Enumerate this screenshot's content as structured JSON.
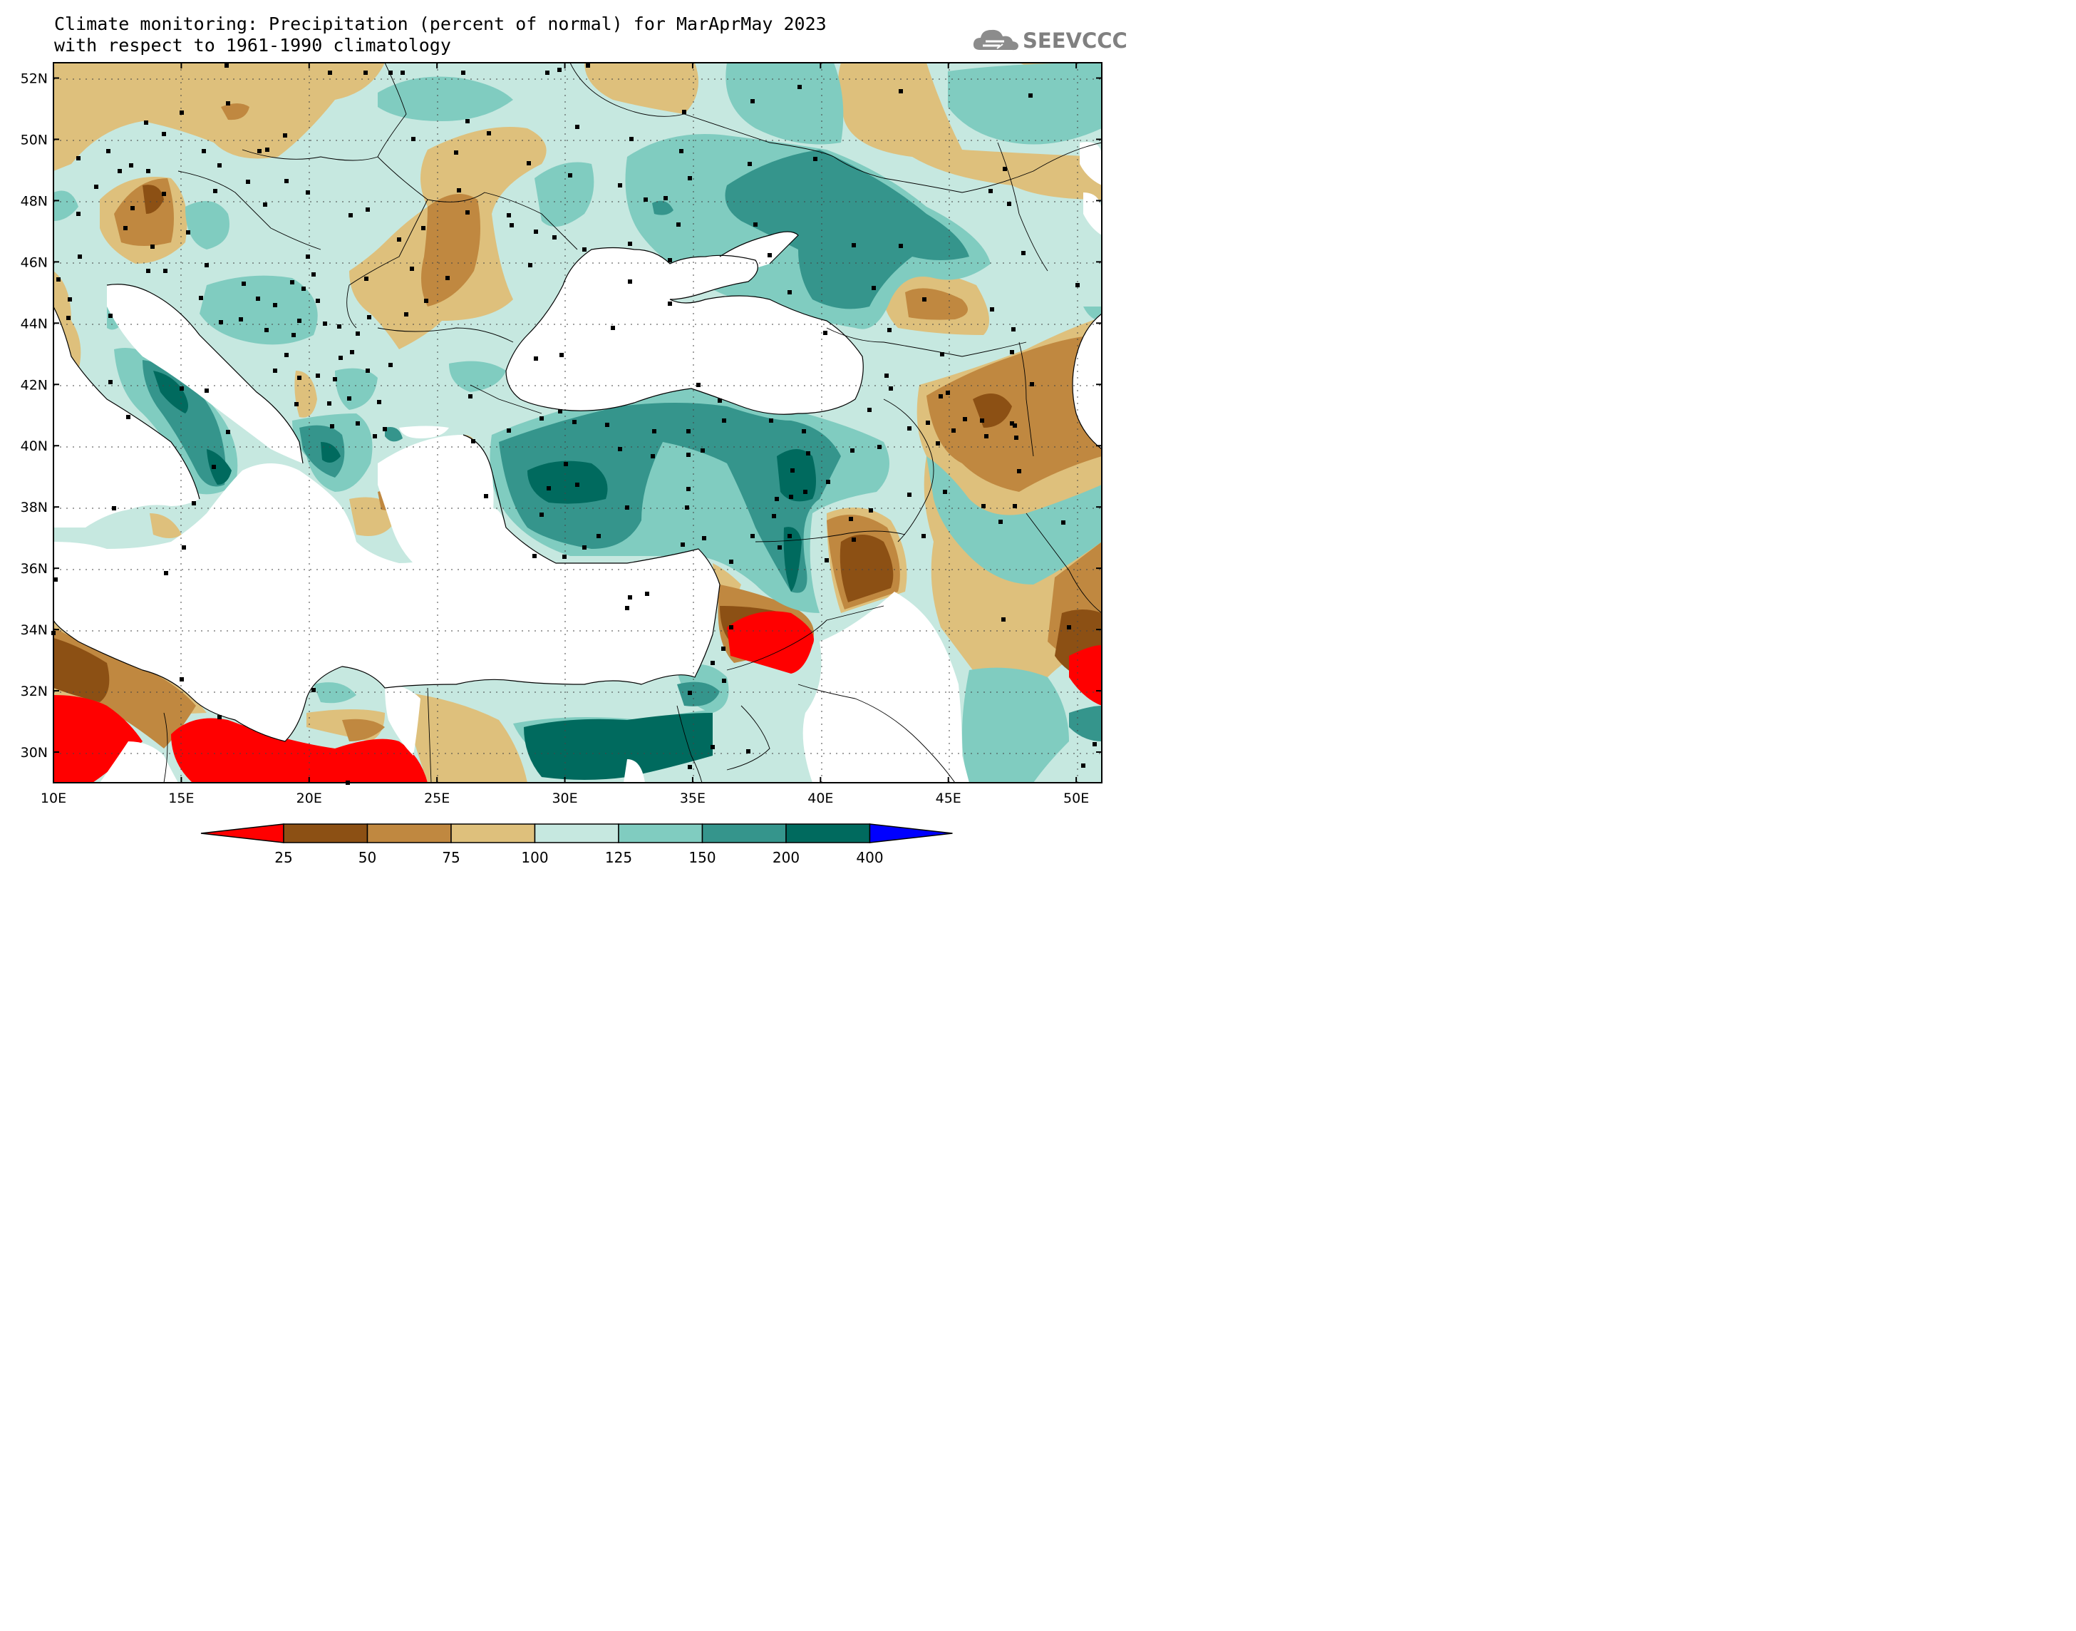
{
  "title": {
    "line1": "Climate monitoring: Precipitation (percent of normal) for MarAprMay 2023",
    "line2": "with respect to 1961-1990 climatology"
  },
  "logo": {
    "text": "SEEVCCC",
    "icon": "cloud-icon"
  },
  "map": {
    "lon_range": [
      10,
      51
    ],
    "lat_range": [
      29,
      52.5
    ],
    "x_ticks": [
      "10E",
      "15E",
      "20E",
      "25E",
      "30E",
      "35E",
      "40E",
      "45E",
      "50E"
    ],
    "y_ticks": [
      "30N",
      "32N",
      "34N",
      "36N",
      "38N",
      "40N",
      "42N",
      "44N",
      "46N",
      "48N",
      "50N",
      "52N"
    ],
    "grid": true
  },
  "colorbar": {
    "labels": [
      "25",
      "50",
      "75",
      "100",
      "125",
      "150",
      "200",
      "400"
    ],
    "colors": [
      "#ff0000",
      "#8c5014",
      "#c08840",
      "#dec07c",
      "#c6e8e0",
      "#80ccc0",
      "#35958c",
      "#006a5e",
      "#0000ff"
    ]
  }
}
